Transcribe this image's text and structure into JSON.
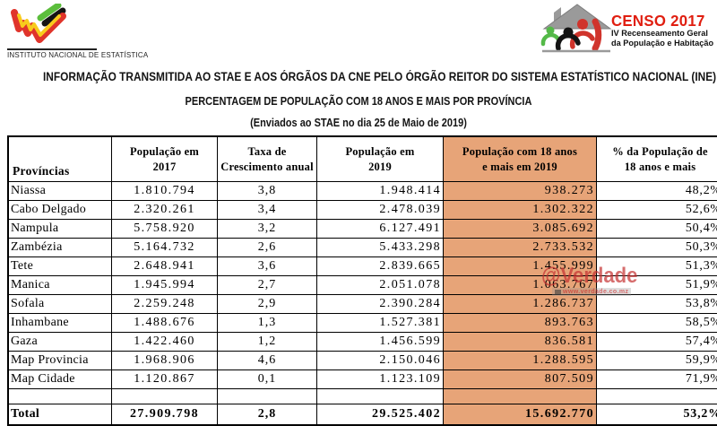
{
  "ine": {
    "caption": "INSTITUTO NACIONAL DE ESTATÍSTICA"
  },
  "censo": {
    "title": "CENSO 2017",
    "subtitle1": "IV Recenseamento Geral",
    "subtitle2": "da População e Habitação",
    "title_color": "#E01E10"
  },
  "titles": {
    "line1": "INFORMAÇÃO TRANSMITIDA AO STAE E AOS ÓRGÃOS DA CNE PELO ÓRGÃO REITOR DO SISTEMA ESTATÍSTICO NACIONAL (INE)",
    "line2": "PERCENTAGEM DE POPULAÇÃO COM 18 ANOS E MAIS POR PROVÍNCIA",
    "line3": "(Enviados ao STAE no dia 25 de Maio de 2019)"
  },
  "table": {
    "columns": [
      "Províncias",
      "População em\n2017",
      "Taxa de\nCrescimento anual",
      "População em\n2019",
      "População com 18 anos\ne mais em 2019",
      "% da População de\n18 anos e mais"
    ],
    "rows": [
      [
        "Niassa",
        "1.810.794",
        "3,8",
        "1.948.414",
        "938.273",
        "48,2%"
      ],
      [
        "Cabo Delgado",
        "2.320.261",
        "3,4",
        "2.478.039",
        "1.302.322",
        "52,6%"
      ],
      [
        "Nampula",
        "5.758.920",
        "3,2",
        "6.127.491",
        "3.085.692",
        "50,4%"
      ],
      [
        "Zambézia",
        "5.164.732",
        "2,6",
        "5.433.298",
        "2.733.532",
        "50,3%"
      ],
      [
        "Tete",
        "2.648.941",
        "3,6",
        "2.839.665",
        "1.455.999",
        "51,3%"
      ],
      [
        "Manica",
        "1.945.994",
        "2,7",
        "2.051.078",
        "1.063.767",
        "51,9%"
      ],
      [
        "Sofala",
        "2.259.248",
        "2,9",
        "2.390.284",
        "1.286.737",
        "53,8%"
      ],
      [
        "Inhambane",
        "1.488.676",
        "1,3",
        "1.527.381",
        "893.763",
        "58,5%"
      ],
      [
        "Gaza",
        "1.422.460",
        "1,2",
        "1.456.599",
        "836.581",
        "57,4%"
      ],
      [
        "Map Provincia",
        "1.968.906",
        "4,6",
        "2.150.046",
        "1.288.595",
        "59,9%"
      ],
      [
        "Map Cidade",
        "1.120.867",
        "0,1",
        "1.123.109",
        "807.509",
        "71,9%"
      ]
    ],
    "total_row": [
      "Total",
      "27.909.798",
      "2,8",
      "29.525.402",
      "15.692.770",
      "53,2%"
    ],
    "highlight_color": "#E7A478"
  },
  "watermark": {
    "text": "@Verdade",
    "url": "www.verdade.co.mz",
    "color": "#C53030"
  }
}
